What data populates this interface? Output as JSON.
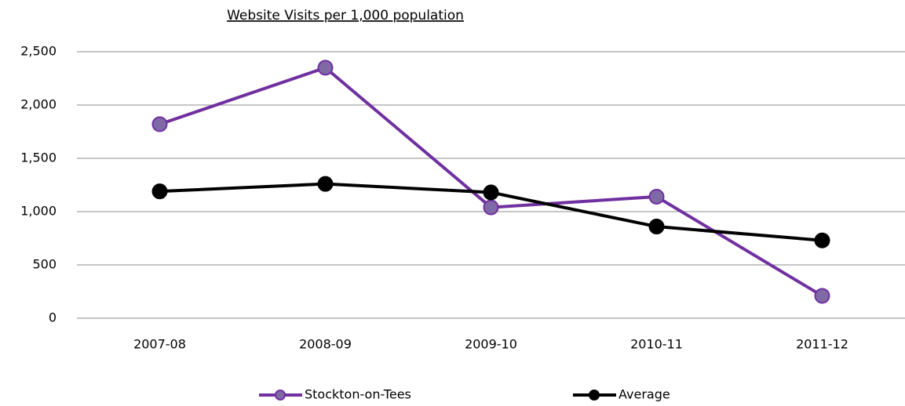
{
  "chart_data": {
    "type": "line",
    "title": "Website Visits per 1,000 population",
    "categories": [
      "2007-08",
      "2008-09",
      "2009-10",
      "2010-11",
      "2011-12"
    ],
    "series": [
      {
        "name": "Stockton-on-Tees",
        "color": "#7030a0",
        "marker_color": "#7f6aa6",
        "values": [
          1820,
          2350,
          1040,
          1140,
          210
        ]
      },
      {
        "name": "Average",
        "color": "#000000",
        "marker_color": "#000000",
        "values": [
          1190,
          1260,
          1180,
          860,
          730
        ]
      }
    ],
    "ylim": [
      0,
      2500
    ],
    "yticks": [
      0,
      500,
      {
        "value": 1000,
        "label": "1,000"
      },
      {
        "value": 1500,
        "label": "1,500"
      },
      {
        "value": 2000,
        "label": "2,000"
      },
      {
        "value": 2500,
        "label": "2,500"
      }
    ],
    "grid": true,
    "legend": "bottom"
  }
}
